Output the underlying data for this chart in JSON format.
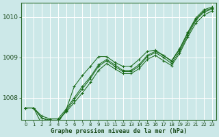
{
  "title": "Graphe pression niveau de la mer (hPa)",
  "bg_color": "#cce8e8",
  "grid_color": "#ffffff",
  "line_color": "#1a6b1a",
  "xlim": [
    -0.5,
    23.5
  ],
  "ylim": [
    1007.45,
    1010.35
  ],
  "yticks": [
    1008,
    1009,
    1010
  ],
  "ytick_labels": [
    "1008",
    "1009",
    "1010"
  ],
  "xticks": [
    0,
    1,
    2,
    3,
    4,
    5,
    6,
    7,
    8,
    9,
    10,
    11,
    12,
    13,
    14,
    15,
    16,
    17,
    18,
    19,
    20,
    21,
    22,
    23
  ],
  "series": [
    [
      1007.75,
      1007.75,
      1007.5,
      1007.45,
      1007.45,
      1007.65,
      1007.85,
      1008.1,
      1008.35,
      1008.65,
      1008.85,
      1008.72,
      1008.6,
      1008.6,
      1008.72,
      1008.92,
      1009.05,
      1008.92,
      1008.8,
      1009.1,
      1009.5,
      1009.85,
      1010.05,
      1010.15
    ],
    [
      1007.75,
      1007.75,
      1007.5,
      1007.45,
      1007.45,
      1007.7,
      1007.95,
      1008.2,
      1008.45,
      1008.75,
      1008.9,
      1008.78,
      1008.65,
      1008.65,
      1008.78,
      1009.0,
      1009.1,
      1009.0,
      1008.85,
      1009.15,
      1009.55,
      1009.9,
      1010.1,
      1010.18
    ],
    [
      1007.75,
      1007.75,
      1007.55,
      1007.48,
      1007.48,
      1007.72,
      1008.0,
      1008.28,
      1008.52,
      1008.82,
      1008.95,
      1008.82,
      1008.68,
      1008.68,
      1008.82,
      1009.05,
      1009.15,
      1009.05,
      1008.9,
      1009.2,
      1009.6,
      1009.95,
      1010.15,
      1010.22
    ],
    [
      1007.75,
      1007.75,
      1007.35,
      1007.38,
      1007.38,
      1007.6,
      1007.88,
      1008.18,
      1008.42,
      1009.02,
      1009.02,
      1008.88,
      1008.78,
      1008.78,
      1008.92,
      1009.12,
      1009.15,
      1009.02,
      1008.88,
      1009.18,
      1009.58,
      1009.92,
      1010.12,
      1010.2
    ]
  ],
  "zigzag_series": [
    1007.75,
    1007.75,
    1007.35,
    1007.38,
    1007.38,
    1007.7,
    1008.25,
    1008.55,
    1008.75,
    1009.02,
    1009.02,
    1008.88,
    1008.78,
    1008.78,
    1008.95,
    1009.15,
    1009.18,
    1009.05,
    1008.92,
    1009.22,
    1009.62,
    1009.98,
    1010.18,
    1010.25
  ]
}
